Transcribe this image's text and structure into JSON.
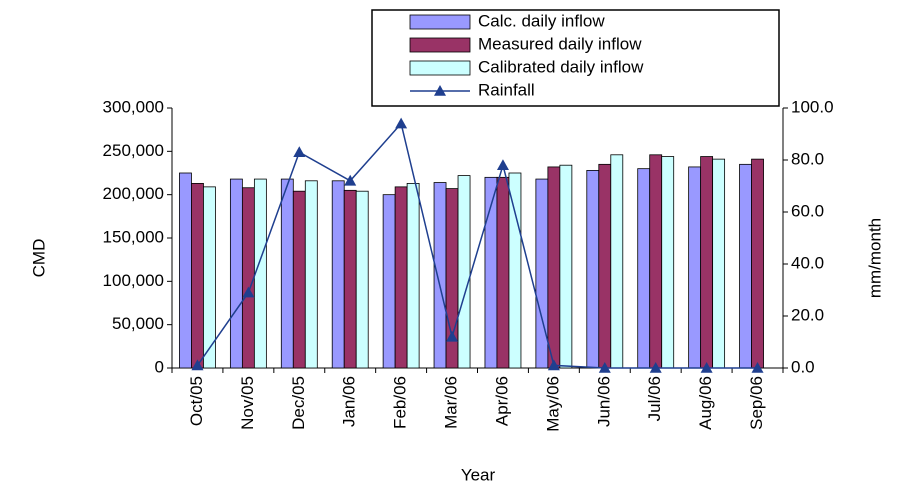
{
  "chart_data": {
    "type": "bar",
    "x_label": "Year",
    "y_label": "CMD",
    "y2_label": "mm/month",
    "categories": [
      "Oct/05",
      "Nov/05",
      "Dec/05",
      "Jan/06",
      "Feb/06",
      "Mar/06",
      "Apr/06",
      "May/06",
      "Jun/06",
      "Jul/06",
      "Aug/06",
      "Sep/06"
    ],
    "series": [
      {
        "name": "Calc. daily inflow",
        "color": "#9999ff",
        "values": [
          225000,
          218000,
          218000,
          216000,
          200000,
          214000,
          220000,
          218000,
          228000,
          230000,
          232000,
          235000
        ]
      },
      {
        "name": "Measured daily inflow",
        "color": "#993366",
        "values": [
          213000,
          208000,
          204000,
          205000,
          209000,
          207000,
          220000,
          232000,
          235000,
          246000,
          244000,
          241000
        ]
      },
      {
        "name": "Calibrated daily inflow",
        "color": "#ccffff",
        "values": [
          209000,
          218000,
          216000,
          204000,
          213000,
          222000,
          225000,
          234000,
          246000,
          244000,
          241000,
          null
        ]
      },
      {
        "name": "Rainfall",
        "type": "line",
        "axis": "y2",
        "color": "#1f3f8f",
        "values": [
          1,
          29,
          83,
          72,
          94,
          12,
          78,
          1,
          0,
          0,
          0,
          0
        ]
      }
    ],
    "ylim": [
      0,
      300000
    ],
    "yticks": [
      0,
      {
        "value": 50000,
        "label": "50,000"
      },
      {
        "value": 100000,
        "label": "100,000"
      },
      {
        "value": 150000,
        "label": "150,000"
      },
      {
        "value": 200000,
        "label": "200,000"
      },
      {
        "value": 250000,
        "label": "250,000"
      },
      {
        "value": 300000,
        "label": "300,000"
      }
    ],
    "y2lim": [
      0,
      100
    ],
    "y2ticks": [
      {
        "value": 0,
        "label": "0.0"
      },
      {
        "value": 20,
        "label": "20.0"
      },
      {
        "value": 40,
        "label": "40.0"
      },
      {
        "value": 60,
        "label": "60.0"
      },
      {
        "value": 80,
        "label": "80.0"
      },
      {
        "value": 100,
        "label": "100.0"
      }
    ],
    "legend": "top"
  }
}
